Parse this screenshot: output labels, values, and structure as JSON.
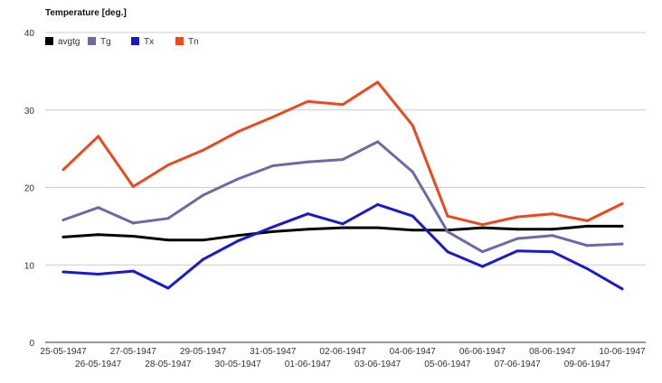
{
  "chart_data": {
    "type": "line",
    "title": "Temperature [deg.]",
    "xlabel": "",
    "ylabel": "",
    "ylim": [
      0,
      40
    ],
    "yticks": [
      0,
      10,
      20,
      30,
      40
    ],
    "grid": true,
    "legend_position": "top-left",
    "categories": [
      "25-05-1947",
      "26-05-1947",
      "27-05-1947",
      "28-05-1947",
      "29-05-1947",
      "30-05-1947",
      "31-05-1947",
      "01-06-1947",
      "02-06-1947",
      "03-06-1947",
      "04-06-1947",
      "05-06-1947",
      "06-06-1947",
      "07-06-1947",
      "08-06-1947",
      "09-06-1947",
      "10-06-1947"
    ],
    "series": [
      {
        "name": "avgtg",
        "color": "#000000",
        "values": [
          13.6,
          13.9,
          13.7,
          13.2,
          13.2,
          13.8,
          14.3,
          14.6,
          14.8,
          14.8,
          14.5,
          14.5,
          14.8,
          14.6,
          14.6,
          15.0,
          15.0
        ]
      },
      {
        "name": "Tg",
        "color": "#6b6ba3",
        "values": [
          15.8,
          17.4,
          15.4,
          16.0,
          19.0,
          21.1,
          22.8,
          23.3,
          23.6,
          25.9,
          22.0,
          14.3,
          11.7,
          13.4,
          13.8,
          12.5,
          12.7
        ]
      },
      {
        "name": "Tx",
        "color": "#1a1acc",
        "values": [
          9.1,
          8.8,
          9.2,
          7.0,
          10.7,
          13.1,
          14.9,
          16.6,
          15.3,
          17.8,
          16.3,
          11.7,
          9.8,
          11.8,
          11.7,
          9.5,
          6.9
        ]
      },
      {
        "name": "Tn",
        "color": "#e84a1e",
        "values": [
          22.3,
          26.6,
          20.1,
          22.9,
          24.8,
          27.2,
          29.1,
          31.1,
          30.7,
          33.6,
          28.0,
          16.3,
          15.2,
          16.2,
          16.6,
          15.7,
          17.9
        ]
      }
    ]
  }
}
